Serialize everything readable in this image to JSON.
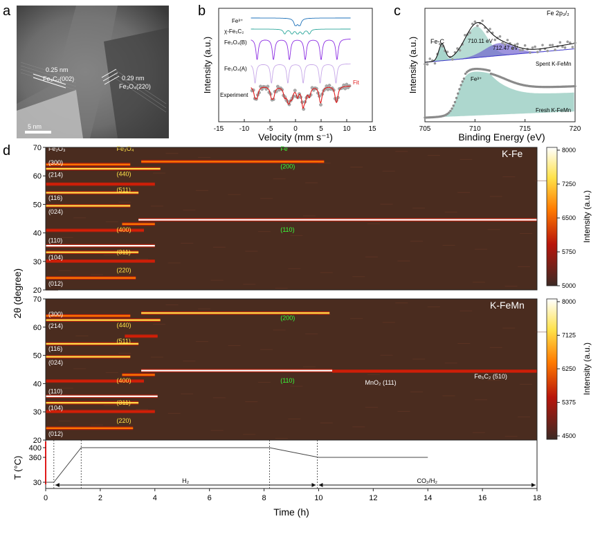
{
  "panel_labels": {
    "a": "a",
    "b": "b",
    "c": "c",
    "d": "d"
  },
  "colors": {
    "heat_bg": "#4a2c1f",
    "hot": "#ffffff",
    "orange": "#ff7a00",
    "red": "#d51e07",
    "yellow": "#ffe24a",
    "green": "#39ff39",
    "violet": "#8a2be2",
    "teal": "#2aa69a",
    "mauve": "#c6a6e8"
  },
  "panel_a": {
    "label1": "0.25 nm",
    "label1b": "Fe₃C₂(002)",
    "label2": "0.29 nm",
    "label2b": "Fe₃O₄(220)",
    "scale": "5 nm"
  },
  "chart_data": [
    {
      "id": "b",
      "type": "line",
      "title": "",
      "xlabel": "Velocity (mm s⁻¹)",
      "ylabel": "Intensity (a.u.)",
      "xlim": [
        -15,
        15
      ],
      "xticks": [
        -15,
        -10,
        -5,
        0,
        5,
        10,
        15
      ],
      "series": [
        {
          "name": "Fe³⁺",
          "lines": [
            0.0,
            0.8
          ]
        },
        {
          "name": "χ-Fe₅C₂",
          "lines": [
            -2.1,
            -0.7,
            0.4,
            1.4,
            2.7
          ]
        },
        {
          "name": "Fe₃O₄(B)",
          "lines": [
            -7.5,
            -4.3,
            -1.2,
            1.9,
            5.0,
            8.1
          ]
        },
        {
          "name": "Fe₃O₄(A)",
          "lines": [
            -7.9,
            -4.7,
            -1.5,
            1.5,
            4.8,
            7.9
          ]
        },
        {
          "name": "Experiment"
        },
        {
          "name": "Fit"
        }
      ]
    },
    {
      "id": "c",
      "type": "line",
      "title": "Fe 2p₃/₂",
      "xlabel": "Binding Energy (eV)",
      "ylabel": "Intensity (a.u.)",
      "xlim": [
        705,
        720
      ],
      "xticks": [
        705,
        710,
        715,
        720
      ],
      "annotations": [
        "Fe-C",
        "710.11 eV",
        "712.47 eV",
        "Spent K-FeMn",
        "Fe³⁺",
        "Fresh K-FeMn"
      ],
      "peaks_eV": [
        706.7,
        710.11,
        712.47
      ]
    },
    {
      "id": "d_top",
      "type": "heatmap",
      "title": "K-Fe",
      "ylabel": "2θ (degree)",
      "ylim": [
        20,
        70
      ],
      "yticks": [
        20,
        30,
        40,
        50,
        60,
        70
      ],
      "xlim": [
        0,
        18
      ],
      "colorbar": {
        "ticks": [
          5000,
          5750,
          6500,
          7250,
          8000
        ],
        "label": "Intensity (a.u.)"
      },
      "stripes": [
        {
          "pos": 24.2,
          "t0": 0,
          "t1": 3.3,
          "intensity": 0.7
        },
        {
          "pos": 30.1,
          "t0": 0,
          "t1": 4.0,
          "intensity": 0.5
        },
        {
          "pos": 33.2,
          "t0": 0,
          "t1": 3.4,
          "intensity": 0.9
        },
        {
          "pos": 35.5,
          "t0": 0,
          "t1": 4.0,
          "intensity": 1.0
        },
        {
          "pos": 40.9,
          "t0": 0,
          "t1": 3.6,
          "intensity": 0.5
        },
        {
          "pos": 43.1,
          "t0": 2.8,
          "t1": 4.0,
          "intensity": 0.7
        },
        {
          "pos": 44.6,
          "t0": 3.4,
          "t1": 18,
          "intensity": 1.0
        },
        {
          "pos": 49.5,
          "t0": 0,
          "t1": 3.1,
          "intensity": 0.8
        },
        {
          "pos": 54.1,
          "t0": 0,
          "t1": 3.4,
          "intensity": 0.8
        },
        {
          "pos": 57.1,
          "t0": 0,
          "t1": 4.0,
          "intensity": 0.5
        },
        {
          "pos": 62.5,
          "t0": 0,
          "t1": 4.2,
          "intensity": 0.8
        },
        {
          "pos": 64.0,
          "t0": 0,
          "t1": 3.1,
          "intensity": 0.7
        },
        {
          "pos": 65.0,
          "t0": 3.5,
          "t1": 10.2,
          "intensity": 0.7
        }
      ],
      "labels": [
        {
          "text": "Fe₂O₃",
          "pos": 69.5,
          "t": 0.1,
          "color": "white"
        },
        {
          "text": "Fe₃O₄",
          "pos": 69.5,
          "t": 2.6,
          "color": "yellow"
        },
        {
          "text": "Fe",
          "pos": 69.5,
          "t": 8.6,
          "color": "green"
        },
        {
          "text": "(300)",
          "pos": 64.6,
          "t": 0.1,
          "color": "white"
        },
        {
          "text": "(214)",
          "pos": 60.4,
          "t": 0.1,
          "color": "white"
        },
        {
          "text": "(116)",
          "pos": 52.3,
          "t": 0.1,
          "color": "white"
        },
        {
          "text": "(024)",
          "pos": 47.4,
          "t": 0.1,
          "color": "white"
        },
        {
          "text": "(110)",
          "pos": 37.3,
          "t": 0.1,
          "color": "white"
        },
        {
          "text": "(104)",
          "pos": 31.4,
          "t": 0.1,
          "color": "white"
        },
        {
          "text": "(012)",
          "pos": 22.2,
          "t": 0.1,
          "color": "white"
        },
        {
          "text": "(440)",
          "pos": 60.7,
          "t": 2.6,
          "color": "yellow"
        },
        {
          "text": "(511)",
          "pos": 55.1,
          "t": 2.6,
          "color": "yellow"
        },
        {
          "text": "(400)",
          "pos": 41.1,
          "t": 2.6,
          "color": "yellow"
        },
        {
          "text": "(311)",
          "pos": 33.2,
          "t": 2.6,
          "color": "yellow"
        },
        {
          "text": "(220)",
          "pos": 26.9,
          "t": 2.6,
          "color": "yellow"
        },
        {
          "text": "(200)",
          "pos": 63.3,
          "t": 8.6,
          "color": "green"
        },
        {
          "text": "(110)",
          "pos": 41.1,
          "t": 8.6,
          "color": "green"
        }
      ]
    },
    {
      "id": "d_mid",
      "type": "heatmap",
      "title": "K-FeMn",
      "ylabel": "2θ (degree)",
      "ylim": [
        20,
        70
      ],
      "yticks": [
        20,
        30,
        40,
        50,
        60,
        70
      ],
      "xlim": [
        0,
        18
      ],
      "colorbar": {
        "ticks": [
          4500,
          5375,
          6250,
          7125,
          8000
        ],
        "label": "Intensity (a.u.)"
      },
      "stripes": [
        {
          "pos": 24.2,
          "t0": 0,
          "t1": 3.2,
          "intensity": 0.7
        },
        {
          "pos": 30.1,
          "t0": 0,
          "t1": 4.0,
          "intensity": 0.5
        },
        {
          "pos": 33.2,
          "t0": 0,
          "t1": 3.4,
          "intensity": 0.9
        },
        {
          "pos": 35.5,
          "t0": 0,
          "t1": 4.1,
          "intensity": 1.0
        },
        {
          "pos": 40.9,
          "t0": 0,
          "t1": 3.6,
          "intensity": 0.5
        },
        {
          "pos": 43.1,
          "t0": 2.8,
          "t1": 4.0,
          "intensity": 0.7
        },
        {
          "pos": 44.6,
          "t0": 3.5,
          "t1": 10.5,
          "intensity": 1.0
        },
        {
          "pos": 44.4,
          "t0": 10.5,
          "t1": 18,
          "intensity": 0.35
        },
        {
          "pos": 49.5,
          "t0": 0,
          "t1": 3.1,
          "intensity": 0.8
        },
        {
          "pos": 54.1,
          "t0": 0,
          "t1": 3.4,
          "intensity": 0.8
        },
        {
          "pos": 56.8,
          "t0": 2.9,
          "t1": 4.1,
          "intensity": 0.5
        },
        {
          "pos": 62.5,
          "t0": 0,
          "t1": 4.2,
          "intensity": 0.8
        },
        {
          "pos": 64.0,
          "t0": 0,
          "t1": 3.1,
          "intensity": 0.7
        },
        {
          "pos": 65.0,
          "t0": 3.5,
          "t1": 10.4,
          "intensity": 0.8
        }
      ],
      "labels": [
        {
          "text": "(300)",
          "pos": 64.6,
          "t": 0.1,
          "color": "white"
        },
        {
          "text": "(214)",
          "pos": 60.4,
          "t": 0.1,
          "color": "white"
        },
        {
          "text": "(116)",
          "pos": 52.3,
          "t": 0.1,
          "color": "white"
        },
        {
          "text": "(024)",
          "pos": 47.4,
          "t": 0.1,
          "color": "white"
        },
        {
          "text": "(110)",
          "pos": 37.3,
          "t": 0.1,
          "color": "white"
        },
        {
          "text": "(104)",
          "pos": 31.4,
          "t": 0.1,
          "color": "white"
        },
        {
          "text": "(012)",
          "pos": 22.2,
          "t": 0.1,
          "color": "white"
        },
        {
          "text": "(440)",
          "pos": 60.7,
          "t": 2.6,
          "color": "yellow"
        },
        {
          "text": "(511)",
          "pos": 55.1,
          "t": 2.6,
          "color": "yellow"
        },
        {
          "text": "(400)",
          "pos": 41.1,
          "t": 2.6,
          "color": "yellow"
        },
        {
          "text": "(311)",
          "pos": 33.2,
          "t": 2.6,
          "color": "yellow"
        },
        {
          "text": "(220)",
          "pos": 26.9,
          "t": 2.6,
          "color": "yellow"
        },
        {
          "text": "(200)",
          "pos": 63.3,
          "t": 8.6,
          "color": "green"
        },
        {
          "text": "(110)",
          "pos": 41.1,
          "t": 8.6,
          "color": "green"
        },
        {
          "text": "MnO₂  (111)",
          "pos": 40.3,
          "t": 11.7,
          "color": "white"
        },
        {
          "text": "Fe₅C₂ (510)",
          "pos": 42.5,
          "t": 15.7,
          "color": "white"
        }
      ]
    },
    {
      "id": "d_bottom",
      "type": "line",
      "title": "",
      "xlabel": "Time (h)",
      "ylabel": "T (°C)",
      "xlim": [
        0,
        18
      ],
      "xticks": [
        0,
        2,
        4,
        6,
        8,
        10,
        12,
        14,
        16,
        18
      ],
      "yticks": [
        30,
        360,
        400
      ],
      "x": [
        0,
        0.3,
        1.3,
        8.2,
        10.0,
        14.0
      ],
      "values": [
        30,
        30,
        400,
        400,
        360,
        360
      ],
      "vlines": [
        0.3,
        1.3,
        8.2,
        9.95
      ],
      "phases": [
        {
          "label": "H₂",
          "t0": 0.3,
          "t1": 9.95
        },
        {
          "label": "CO₂/H₂",
          "t0": 9.95,
          "t1": 18
        }
      ]
    }
  ]
}
